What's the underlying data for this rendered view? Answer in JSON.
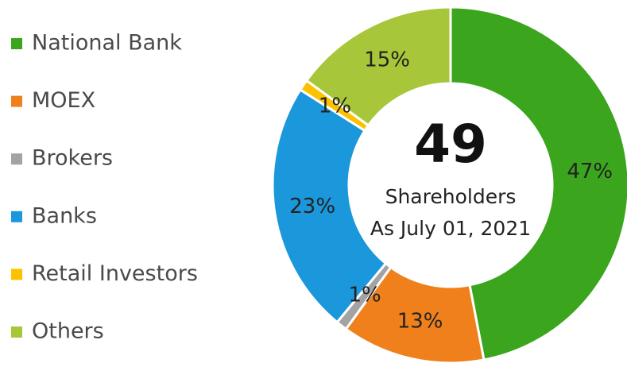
{
  "chart_data": {
    "type": "pie",
    "donut": true,
    "categories": [
      "National Bank",
      "MOEX",
      "Brokers",
      "Banks",
      "Retail Investors",
      "Others"
    ],
    "values": [
      47,
      13,
      1,
      23,
      1,
      15
    ],
    "value_labels": [
      "47%",
      "13%",
      "1%",
      "23%",
      "1%",
      "15%"
    ],
    "colors": [
      "#3ba61d",
      "#ef801b",
      "#a3a3a3",
      "#1b97dc",
      "#fcc200",
      "#a8c63a"
    ],
    "center_value": 49,
    "center_lines": [
      "Shareholders",
      "As July 01, 2021"
    ],
    "legend": "left"
  }
}
